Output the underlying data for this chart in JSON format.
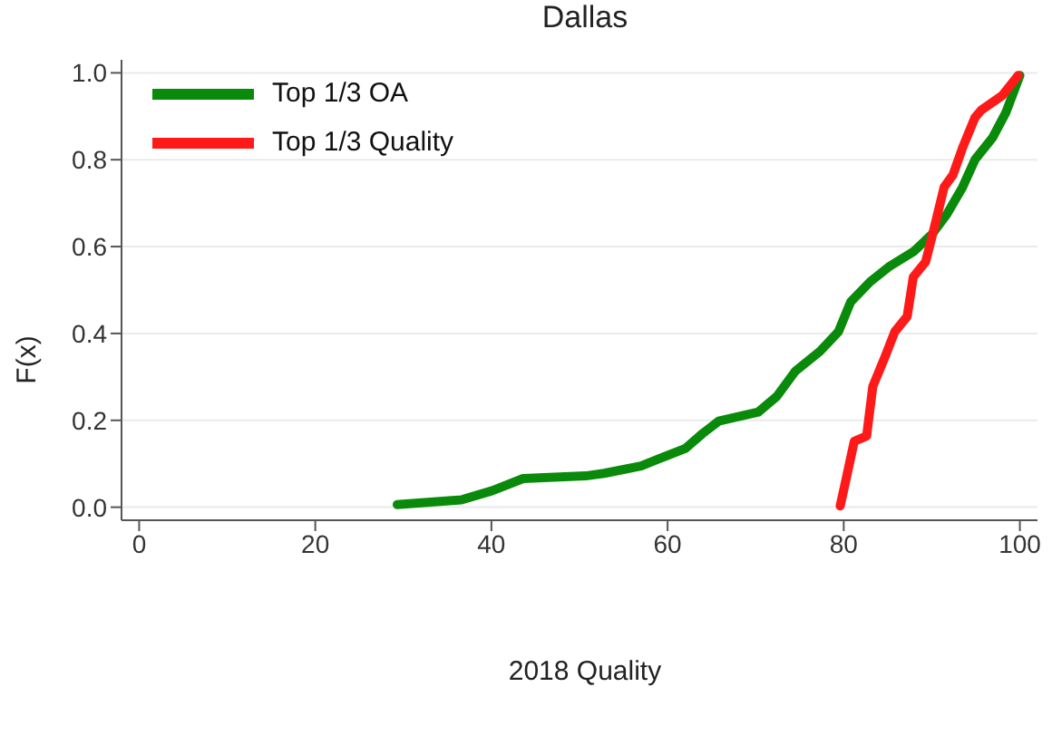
{
  "chart_data": {
    "type": "line",
    "title": "Dallas",
    "xlabel": "2018 Quality",
    "ylabel": "F(x)",
    "xlim": [
      -2,
      102
    ],
    "xticks": [
      0,
      20,
      40,
      60,
      80,
      100
    ],
    "ylim": [
      -0.03,
      1.03
    ],
    "yticks": [
      {
        "value": 0,
        "label": "0.0"
      },
      {
        "value": 0.2,
        "label": "0.2"
      },
      {
        "value": 0.4,
        "label": "0.4"
      },
      {
        "value": 0.6,
        "label": "0.6"
      },
      {
        "value": 0.8,
        "label": "0.8"
      },
      {
        "value": 1,
        "label": "1.0"
      }
    ],
    "grid": "y",
    "legend": "top left",
    "marker": "none",
    "line_style": "solid",
    "series": [
      {
        "name": "Top 1/3 OA",
        "color": "#0a8a0a",
        "x": [
          29.3,
          36.6,
          40.1,
          43.6,
          50.7,
          52.8,
          57.0,
          59.1,
          62.0,
          64.0,
          65.8,
          70.3,
          72.4,
          74.5,
          77.3,
          79.4,
          80.8,
          83.0,
          85.1,
          87.9,
          90.0,
          91.7,
          93.5,
          94.9,
          96.9,
          98.4,
          100
        ],
        "values": [
          0.006,
          0.017,
          0.038,
          0.066,
          0.072,
          0.078,
          0.095,
          0.112,
          0.135,
          0.17,
          0.198,
          0.219,
          0.255,
          0.313,
          0.359,
          0.404,
          0.473,
          0.519,
          0.553,
          0.588,
          0.628,
          0.674,
          0.737,
          0.8,
          0.851,
          0.908,
          0.994
        ]
      },
      {
        "name": "Top 1/3 Quality",
        "color": "#ff1a1a",
        "x": [
          79.6,
          80.1,
          81.2,
          82.6,
          83.3,
          84.7,
          85.8,
          87.2,
          87.9,
          89.3,
          90.3,
          91.4,
          92.4,
          93.5,
          94.9,
          95.6,
          98.0,
          99.8
        ],
        "values": [
          0.003,
          0.049,
          0.152,
          0.164,
          0.278,
          0.347,
          0.404,
          0.439,
          0.53,
          0.565,
          0.645,
          0.737,
          0.765,
          0.828,
          0.897,
          0.914,
          0.948,
          0.994
        ]
      }
    ]
  }
}
